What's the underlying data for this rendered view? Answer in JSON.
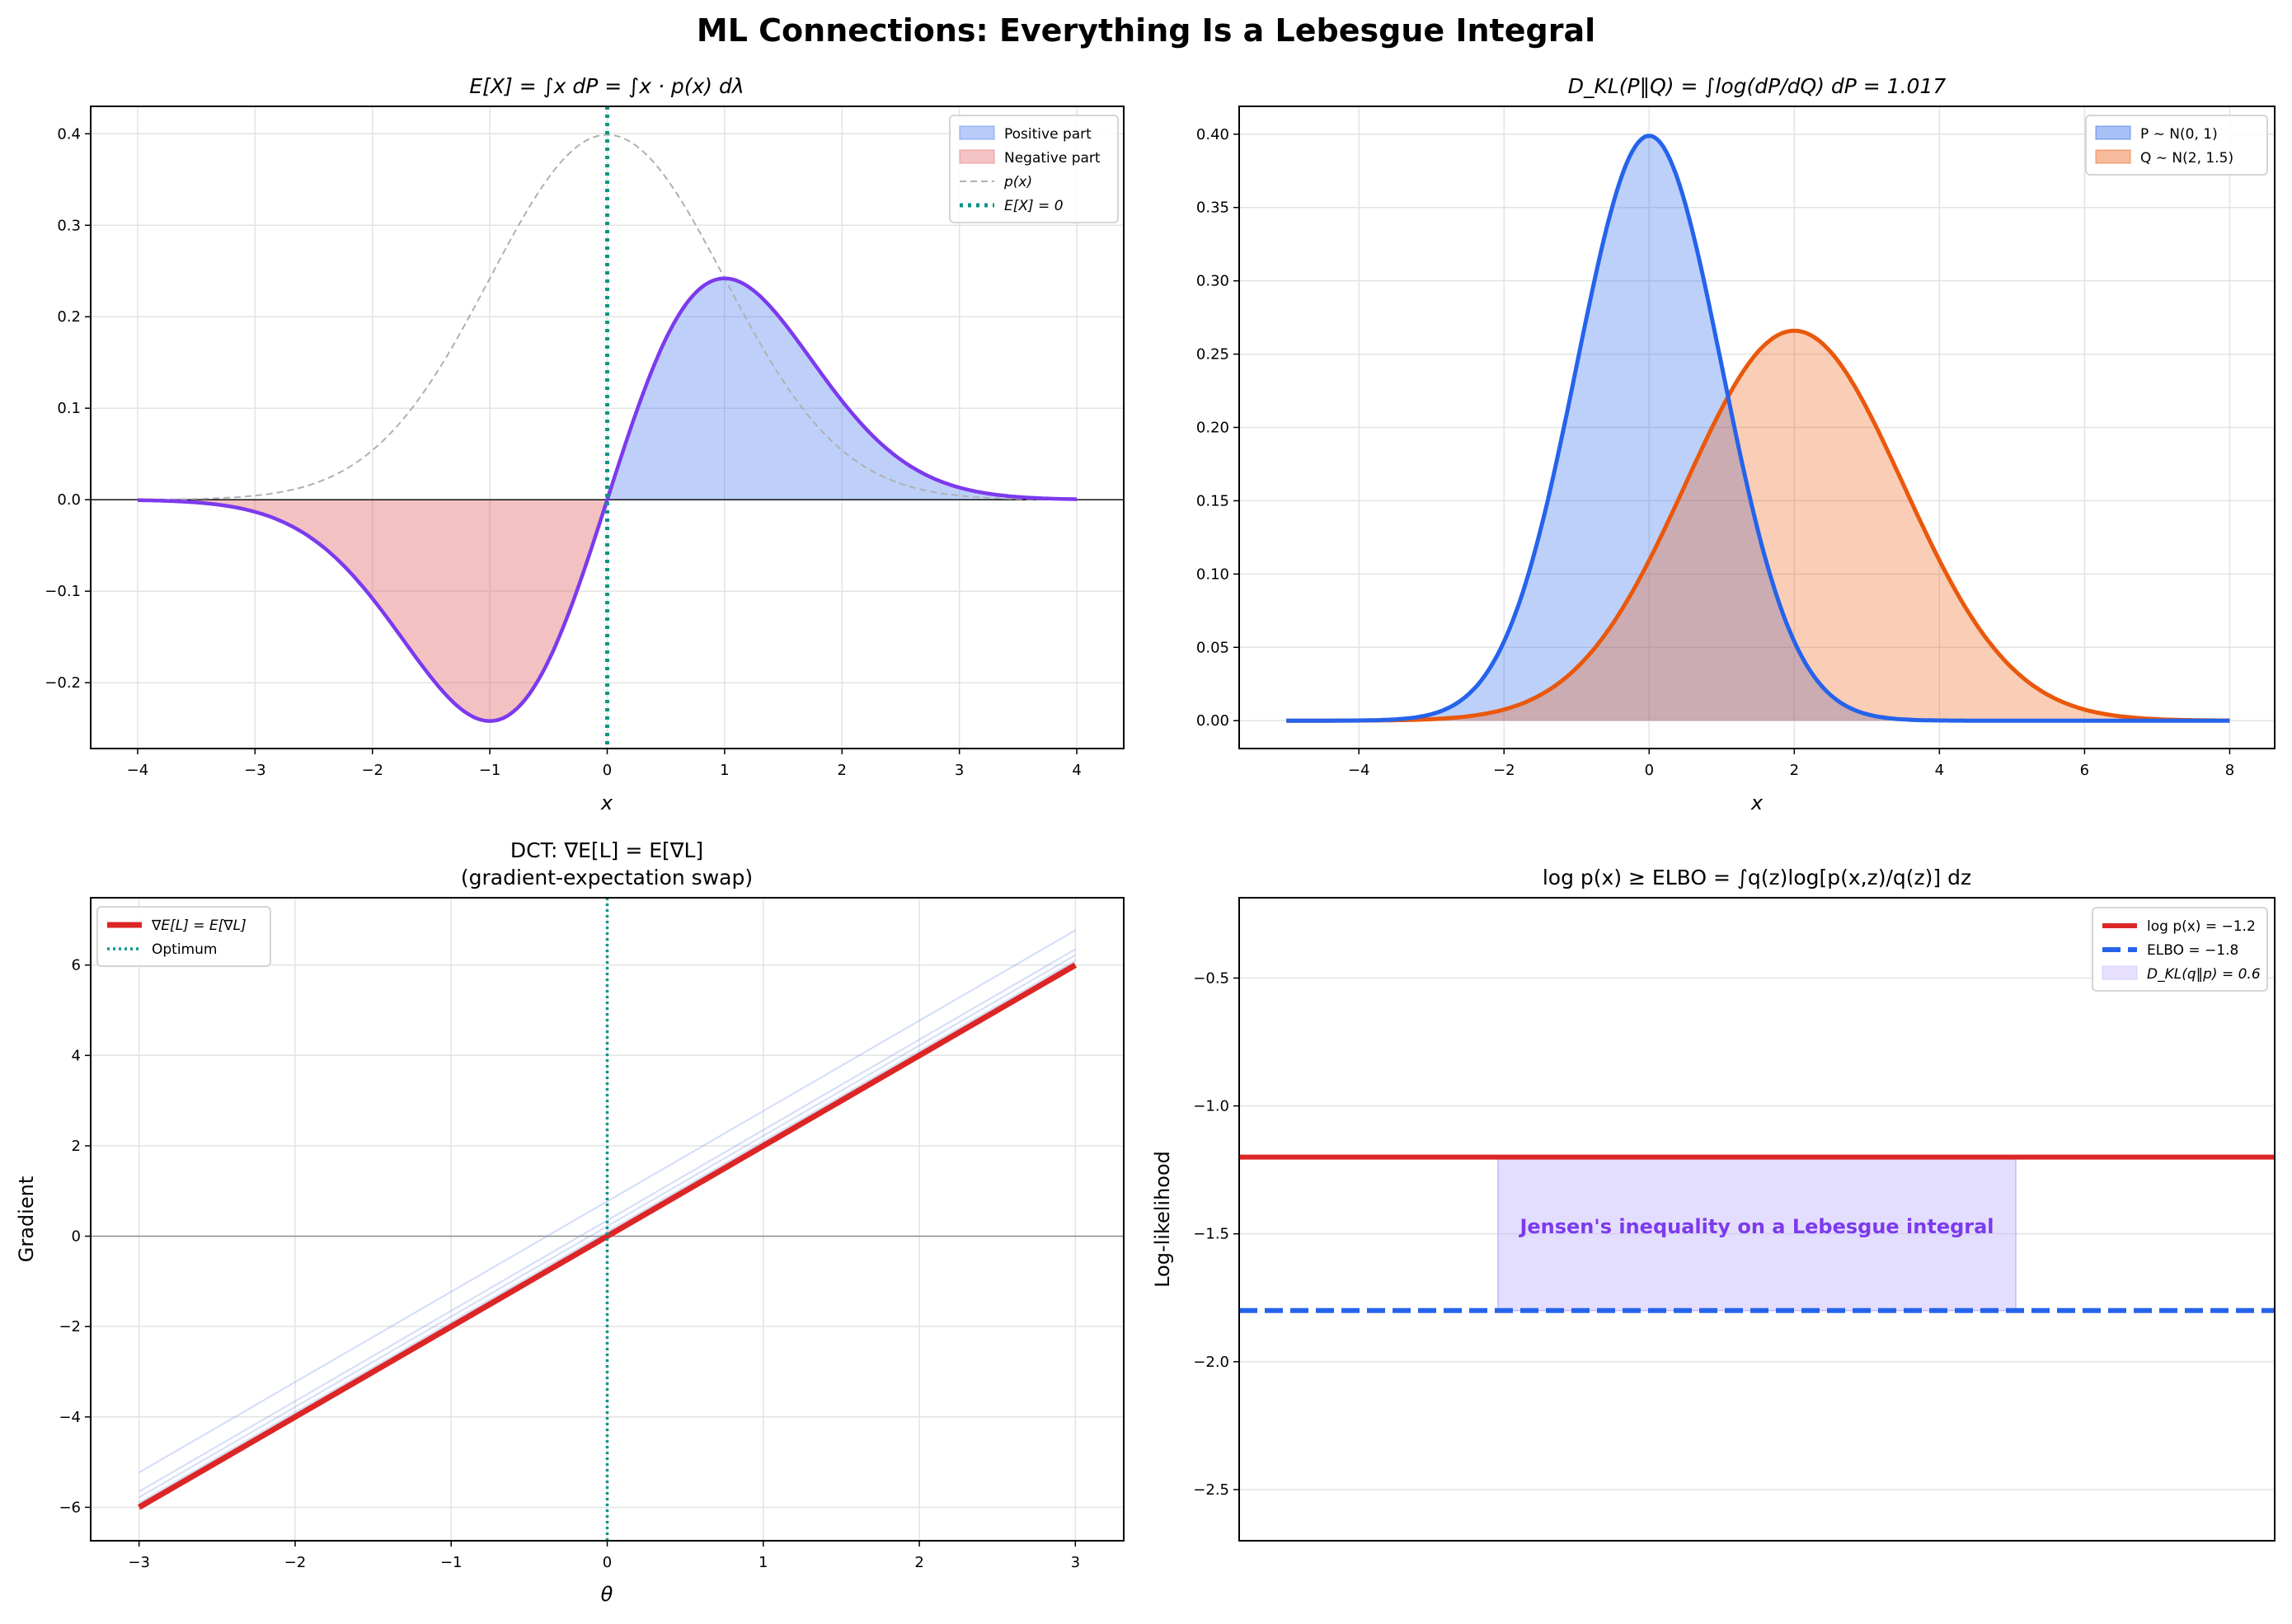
{
  "figure_title": "ML Connections: Everything Is a Lebesgue Integral",
  "chart_data": [
    {
      "type": "area",
      "title": "E[X] = ∫x dP = ∫x · p(x) dλ",
      "xlabel": "x",
      "ylabel": "",
      "xlim": [
        -4.4,
        4.4
      ],
      "ylim": [
        -0.272,
        0.43
      ],
      "xticks": [
        -4,
        -3,
        -2,
        -1,
        0,
        1,
        2,
        3,
        4
      ],
      "yticks": [
        -0.2,
        -0.1,
        0.0,
        0.1,
        0.2,
        0.3,
        0.4
      ],
      "x_domain": [
        -4,
        4
      ],
      "series": [
        {
          "name": "Positive part",
          "kind": "fill",
          "function": "x·p(x) for x>0",
          "color": "#4f7fef"
        },
        {
          "name": "Negative part",
          "kind": "fill",
          "function": "x·p(x) for x<0",
          "color": "#e36b6b"
        },
        {
          "name": "",
          "kind": "line",
          "function": "x·p(x)",
          "color": "#7c3aed"
        },
        {
          "name": "p(x)",
          "kind": "dashed",
          "function": "N(0,1) density",
          "color": "#b0b0b0"
        },
        {
          "name": "E[X] = 0",
          "kind": "vline-dotted",
          "x": 0,
          "color": "#0d9488"
        }
      ],
      "key_points": {
        "max": [
          1,
          0.242
        ],
        "min": [
          -1,
          -0.242
        ]
      },
      "grid": true,
      "legend": "top-right"
    },
    {
      "type": "area",
      "title": "D_KL(P‖Q) = ∫log(dP/dQ) dP = 1.017",
      "xlabel": "x",
      "ylabel": "",
      "xlim": [
        -5.65,
        8.62
      ],
      "ylim": [
        -0.019,
        0.419
      ],
      "xticks": [
        -4,
        -2,
        0,
        2,
        4,
        6,
        8
      ],
      "yticks": [
        "0.00",
        "0.05",
        "0.10",
        "0.15",
        "0.20",
        "0.25",
        "0.30",
        "0.35",
        "0.40"
      ],
      "x_domain": [
        -5,
        8
      ],
      "series": [
        {
          "name": "P ∼ N(0, 1)",
          "mean": 0,
          "std": 1,
          "color": "#2563eb"
        },
        {
          "name": "Q ∼ N(2, 1.5)",
          "mean": 2,
          "std": 1.5,
          "color": "#ea580c"
        }
      ],
      "kl_value": 1.017,
      "grid": true,
      "legend": "top-right"
    },
    {
      "type": "line",
      "title": "DCT: ∇E[L] = E[∇L]",
      "subtitle": "(gradient-expectation swap)",
      "xlabel": "θ",
      "ylabel": "Gradient",
      "xlim": [
        -3.31,
        3.31
      ],
      "ylim": [
        -6.74,
        7.49
      ],
      "xticks": [
        -3,
        -2,
        -1,
        0,
        1,
        2,
        3
      ],
      "yticks": [
        -6,
        -4,
        -2,
        0,
        2,
        4,
        6
      ],
      "x_domain": [
        -3,
        3
      ],
      "series": [
        {
          "name": "∇E[L] = E[∇L]",
          "slope": 2,
          "intercept": 0,
          "color": "#dc2626"
        },
        {
          "name": "Optimum",
          "kind": "vline-dotted",
          "x": 0,
          "color": "#0d9488"
        }
      ],
      "sample_gradients": {
        "slope": 2,
        "intercepts": [
          0.77,
          0.35,
          0.22,
          0.1,
          -0.05
        ],
        "color": "#6d8fe8"
      },
      "grid": true,
      "legend": "top-left"
    },
    {
      "type": "line",
      "title": "log p(x) ≥  ELBO  = ∫q(z)log[p(x,z)/q(z)] dz",
      "xlabel": "",
      "ylabel": "Log-likelihood",
      "xlim": [
        0,
        1
      ],
      "ylim": [
        -2.7,
        -0.186
      ],
      "yticks": [
        -2.5,
        -2.0,
        -1.5,
        -1.0,
        -0.5
      ],
      "series": [
        {
          "name": "log p(x) = −1.2",
          "kind": "hline",
          "y": -1.2,
          "color": "#dc2626"
        },
        {
          "name": "ELBO  = −1.8",
          "kind": "hline-dashed",
          "y": -1.8,
          "color": "#2563eb"
        },
        {
          "name": "D_KL(q‖p) = 0.6",
          "kind": "band",
          "x": [
            0.25,
            0.75
          ],
          "y": [
            -1.8,
            -1.2
          ],
          "color": "#c4b5fd"
        }
      ],
      "annotation": {
        "text": "Jensen's inequality on a Lebesgue integral",
        "x": 0.5,
        "y": -1.5,
        "color": "#7c3aed"
      },
      "grid": true,
      "legend": "top-right"
    }
  ]
}
